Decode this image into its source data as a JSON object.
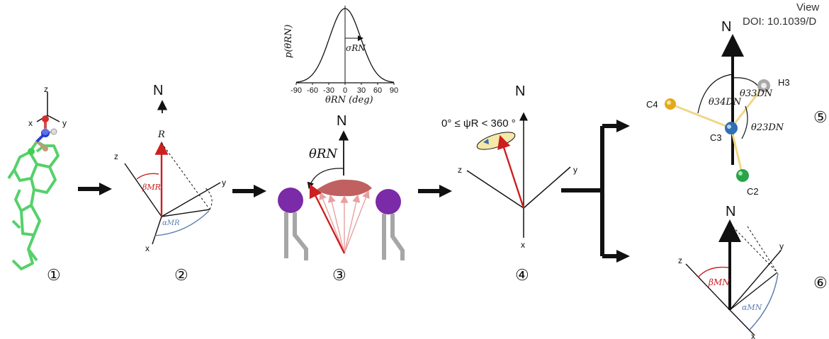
{
  "header": {
    "view_text": "View",
    "doi_text": "DOI: 10.1039/D"
  },
  "panel1": {
    "axis_z": "z",
    "axis_x": "x",
    "axis_y": "y",
    "number": "①"
  },
  "panel2": {
    "n_label": "N",
    "r_label": "R",
    "axis_z": "z",
    "axis_y": "y",
    "axis_x": "x",
    "beta_label": "βMR",
    "alpha_label": "αMR",
    "number": "②"
  },
  "panel3": {
    "inset_ylabel": "p(θRN)",
    "inset_xlabel": "θRN (deg)",
    "inset_sigma": "σRN",
    "inset_ticks": [
      "-90",
      "-60",
      "-30",
      "0",
      "30",
      "60",
      "90"
    ],
    "n_label": "N",
    "theta_label": "θRN",
    "number": "③"
  },
  "panel4": {
    "n_label": "N",
    "psi_text": "0° ≤ ψR < 360 °",
    "axis_z": "z",
    "axis_y": "y",
    "axis_x": "x",
    "number": "④"
  },
  "panel5": {
    "n_label": "N",
    "atoms": [
      "C4",
      "H3",
      "C3",
      "C2"
    ],
    "theta34": "θ34DN",
    "theta33": "θ33DN",
    "theta23": "θ23DN",
    "number": "⑤"
  },
  "panel6": {
    "n_label": "N",
    "axis_z": "z",
    "axis_y": "y",
    "axis_x": "x",
    "beta_label": "βMN",
    "alpha_label": "αMN",
    "number": "⑥"
  },
  "colors": {
    "red": "#cc1f1f",
    "blue": "#5a7fb0",
    "purple": "#7b2aa8",
    "green": "#3cb04a",
    "gold": "#e3a81b",
    "cream": "#f6e8a8"
  },
  "icons": {
    "arrow": "right-arrow-icon",
    "bracket": "branch-bracket-icon"
  }
}
